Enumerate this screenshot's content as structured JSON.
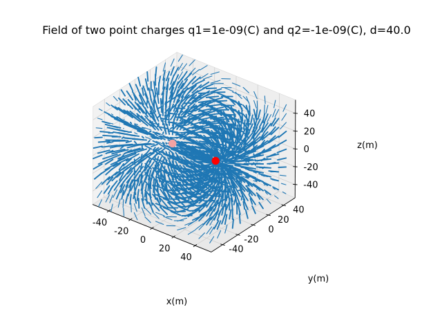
{
  "chart_data": {
    "type": "quiver3d",
    "title": "Field of two point charges q1=1e-09(C) and q2=-1e-09(C), d=40.0",
    "xlabel": "x(m)",
    "ylabel": "y(m)",
    "zlabel": "z(m)",
    "xlim": [
      -55,
      55
    ],
    "ylim": [
      -55,
      55
    ],
    "zlim": [
      -55,
      55
    ],
    "x_ticks": [
      -40,
      -20,
      0,
      20,
      40
    ],
    "y_ticks": [
      -40,
      -20,
      0,
      20,
      40
    ],
    "z_ticks": [
      -40,
      -20,
      0,
      20,
      40
    ],
    "grid": true,
    "charges": [
      {
        "q": 1e-09,
        "position": [
          -20,
          0,
          0
        ],
        "color": "#f4a3a3"
      },
      {
        "q": -1e-09,
        "position": [
          20,
          0,
          0
        ],
        "color": "#ff0000"
      }
    ],
    "field_grid": {
      "min": -50,
      "max": 50,
      "count": 11
    },
    "arrow_color": "#1f77b4",
    "pane_color": "#f2f2f2"
  }
}
